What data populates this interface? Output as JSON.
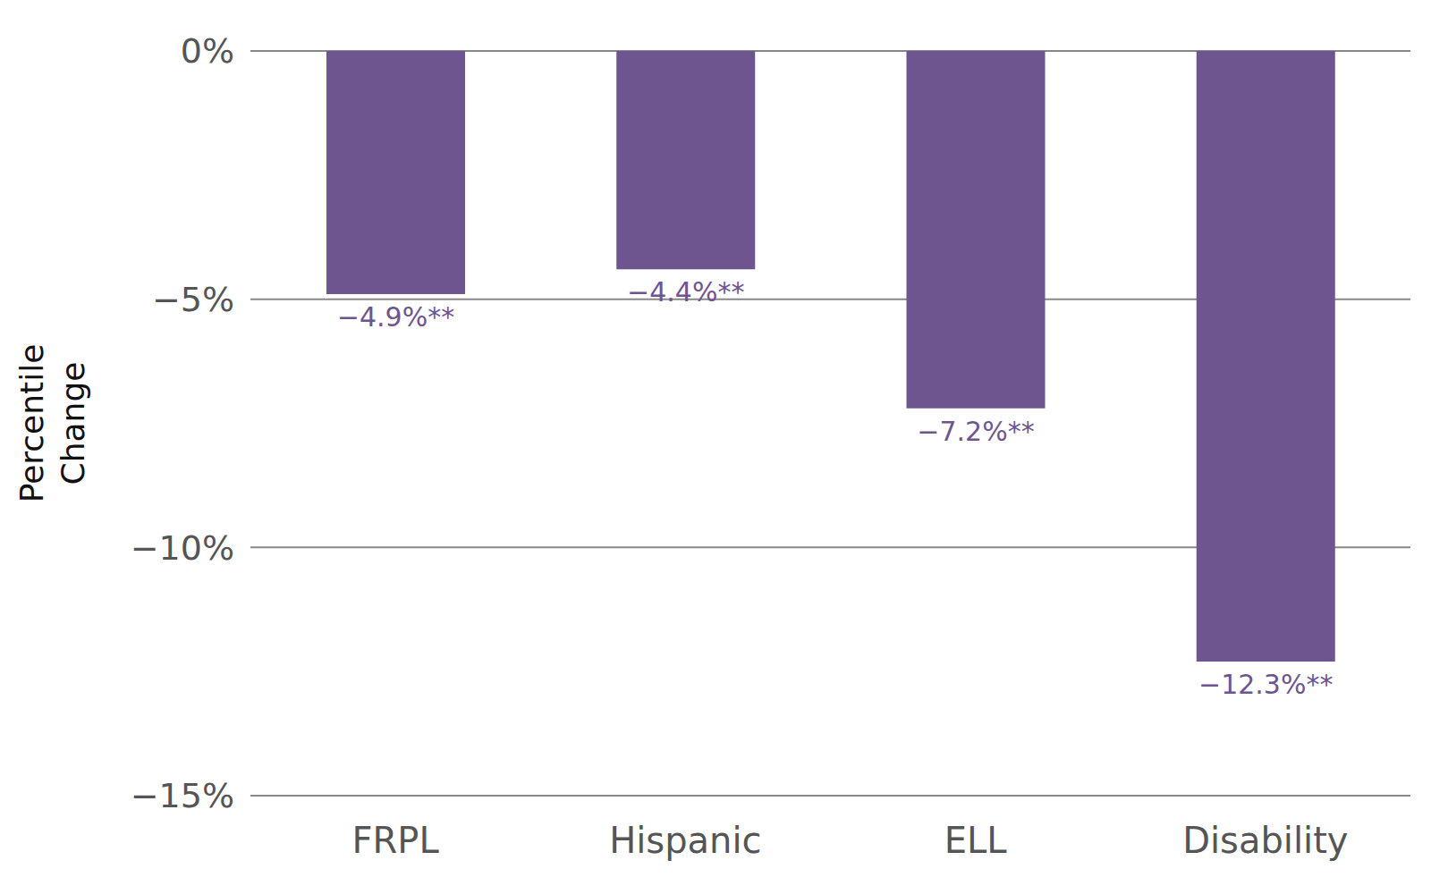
{
  "chart_data": {
    "type": "bar",
    "y_label": "Percentile Change",
    "categories": [
      "FRPL",
      "Hispanic",
      "ELL",
      "Disability"
    ],
    "values": [
      -4.9,
      -4.4,
      -7.2,
      -12.3
    ],
    "value_labels": [
      "−4.9%**",
      "−4.4%**",
      "−7.2%**",
      "−12.3%**"
    ],
    "data_labels": true,
    "color": "#6f5590",
    "ylim": [
      -15,
      0
    ],
    "yticks": [
      {
        "value": 0,
        "label": "0%"
      },
      {
        "value": -5,
        "label": "−5%"
      },
      {
        "value": -10,
        "label": "−10%"
      },
      {
        "value": -15,
        "label": "−15%"
      }
    ],
    "grid": true
  }
}
